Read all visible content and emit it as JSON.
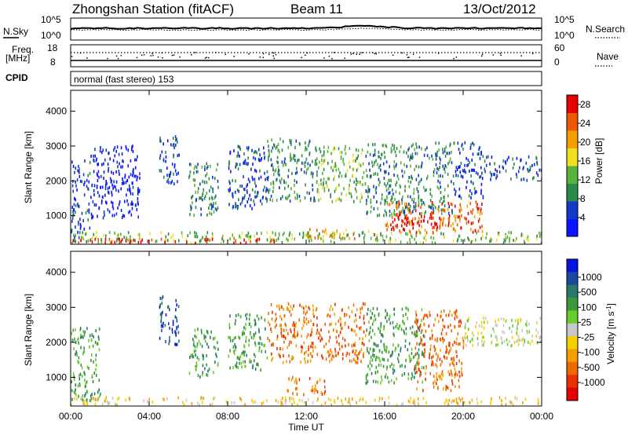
{
  "header": {
    "station": "Zhongshan Station (fitACF)",
    "beam": "Beam 11",
    "date": "13/Oct/2012"
  },
  "strips": {
    "nsky_label": "N.Sky",
    "nsky_ticks": [
      "10^5",
      "10^0"
    ],
    "nsearch_label": "N.Search",
    "nsearch_ticks": [
      "10^5",
      "10^0"
    ],
    "freq_label_top": "Freq.",
    "freq_label_bottom": "[MHz]",
    "freq_ticks": [
      "18",
      "8"
    ],
    "nave_label": "Nave",
    "nave_ticks": [
      "60",
      "0"
    ],
    "cpid_label": "CPID",
    "cpid_text": "normal (fast stereo) 153"
  },
  "chart_data": [
    {
      "type": "heatmap",
      "name": "power",
      "xlabel": "Time UT",
      "ylabel": "Slant Range [km]",
      "x_tick_labels": [
        "00:00",
        "04:00",
        "08:00",
        "12:00",
        "16:00",
        "20:00",
        "00:00"
      ],
      "x_tick_hours": [
        0,
        4,
        8,
        12,
        16,
        20,
        24
      ],
      "xlim_hours": [
        0,
        24
      ],
      "y_ticks": [
        1000,
        2000,
        3000,
        4000
      ],
      "ylim_km": [
        180,
        4600
      ],
      "colorbar": {
        "label": "Power [dB]",
        "ticks": [
          4,
          8,
          12,
          16,
          20,
          24,
          28
        ],
        "range": [
          0,
          30
        ],
        "colors": [
          "#0a14ff",
          "#1438c8",
          "#2a8a4a",
          "#58b23c",
          "#f0e020",
          "#f5a000",
          "#ee5a00",
          "#e80000"
        ]
      },
      "echo_regions": [
        {
          "t0": 0.0,
          "t1": 24.0,
          "r0": 200,
          "r1": 520,
          "level": 3
        },
        {
          "t0": 0.0,
          "t1": 10.5,
          "r0": 200,
          "r1": 330,
          "level": 7
        },
        {
          "t0": 12.0,
          "t1": 15.5,
          "r0": 330,
          "r1": 600,
          "level": 5
        },
        {
          "t0": 16.0,
          "t1": 21.0,
          "r0": 500,
          "r1": 1400,
          "level": 6
        },
        {
          "t0": 16.3,
          "t1": 19.3,
          "r0": 600,
          "r1": 1100,
          "level": 7
        },
        {
          "t0": 0.0,
          "t1": 1.0,
          "r0": 300,
          "r1": 2600,
          "level": 1
        },
        {
          "t0": 1.0,
          "t1": 3.5,
          "r0": 900,
          "r1": 3000,
          "level": 0
        },
        {
          "t0": 4.5,
          "t1": 5.5,
          "r0": 1900,
          "r1": 3300,
          "level": 1
        },
        {
          "t0": 6.0,
          "t1": 7.5,
          "r0": 1000,
          "r1": 2500,
          "level": 2
        },
        {
          "t0": 8.0,
          "t1": 10.0,
          "r0": 1200,
          "r1": 3000,
          "level": 1
        },
        {
          "t0": 10.0,
          "t1": 12.5,
          "r0": 1400,
          "r1": 3200,
          "level": 2
        },
        {
          "t0": 12.5,
          "t1": 15.0,
          "r0": 1400,
          "r1": 3000,
          "level": 3
        },
        {
          "t0": 15.0,
          "t1": 19.5,
          "r0": 1000,
          "r1": 3100,
          "level": 2
        },
        {
          "t0": 19.5,
          "t1": 21.0,
          "r0": 1500,
          "r1": 3100,
          "level": 1
        },
        {
          "t0": 21.0,
          "t1": 24.0,
          "r0": 2000,
          "r1": 2700,
          "level": 1
        }
      ]
    },
    {
      "type": "heatmap",
      "name": "velocity",
      "xlabel": "Time UT",
      "ylabel": "Slant Range [km]",
      "x_tick_labels": [
        "00:00",
        "04:00",
        "08:00",
        "12:00",
        "16:00",
        "20:00",
        "00:00"
      ],
      "x_tick_hours": [
        0,
        4,
        8,
        12,
        16,
        20,
        24
      ],
      "xlim_hours": [
        0,
        24
      ],
      "y_ticks": [
        1000,
        2000,
        3000,
        4000
      ],
      "ylim_km": [
        180,
        4600
      ],
      "colorbar": {
        "label": "Velocity [m s^-1]",
        "ticks": [
          "1000",
          "500",
          "100",
          "25",
          "-25",
          "-100",
          "-500",
          "-1000"
        ],
        "colors": [
          "#0a14e0",
          "#1a4aa0",
          "#2a7a6a",
          "#3a9a3a",
          "#6acc2a",
          "#c8c8c8",
          "#f5d000",
          "#f5a000",
          "#ee6a00",
          "#e83000",
          "#e80000"
        ]
      },
      "echo_regions": [
        {
          "t0": 0.0,
          "t1": 24.0,
          "r0": 200,
          "r1": 420,
          "level": 6
        },
        {
          "t0": 0.0,
          "t1": 1.5,
          "r0": 300,
          "r1": 2400,
          "level": 3
        },
        {
          "t0": 4.5,
          "t1": 5.5,
          "r0": 1900,
          "r1": 3300,
          "level": 1
        },
        {
          "t0": 6.0,
          "t1": 7.5,
          "r0": 1000,
          "r1": 2400,
          "level": 3
        },
        {
          "t0": 8.0,
          "t1": 10.0,
          "r0": 1200,
          "r1": 2800,
          "level": 3
        },
        {
          "t0": 10.0,
          "t1": 15.0,
          "r0": 1400,
          "r1": 3100,
          "level": 8
        },
        {
          "t0": 11.0,
          "t1": 13.0,
          "r0": 500,
          "r1": 1000,
          "level": 8
        },
        {
          "t0": 15.0,
          "t1": 18.0,
          "r0": 800,
          "r1": 3000,
          "level": 3
        },
        {
          "t0": 17.5,
          "t1": 20.0,
          "r0": 600,
          "r1": 2900,
          "level": 8
        },
        {
          "t0": 20.0,
          "t1": 24.0,
          "r0": 1900,
          "r1": 2700,
          "level": 5
        }
      ]
    }
  ]
}
